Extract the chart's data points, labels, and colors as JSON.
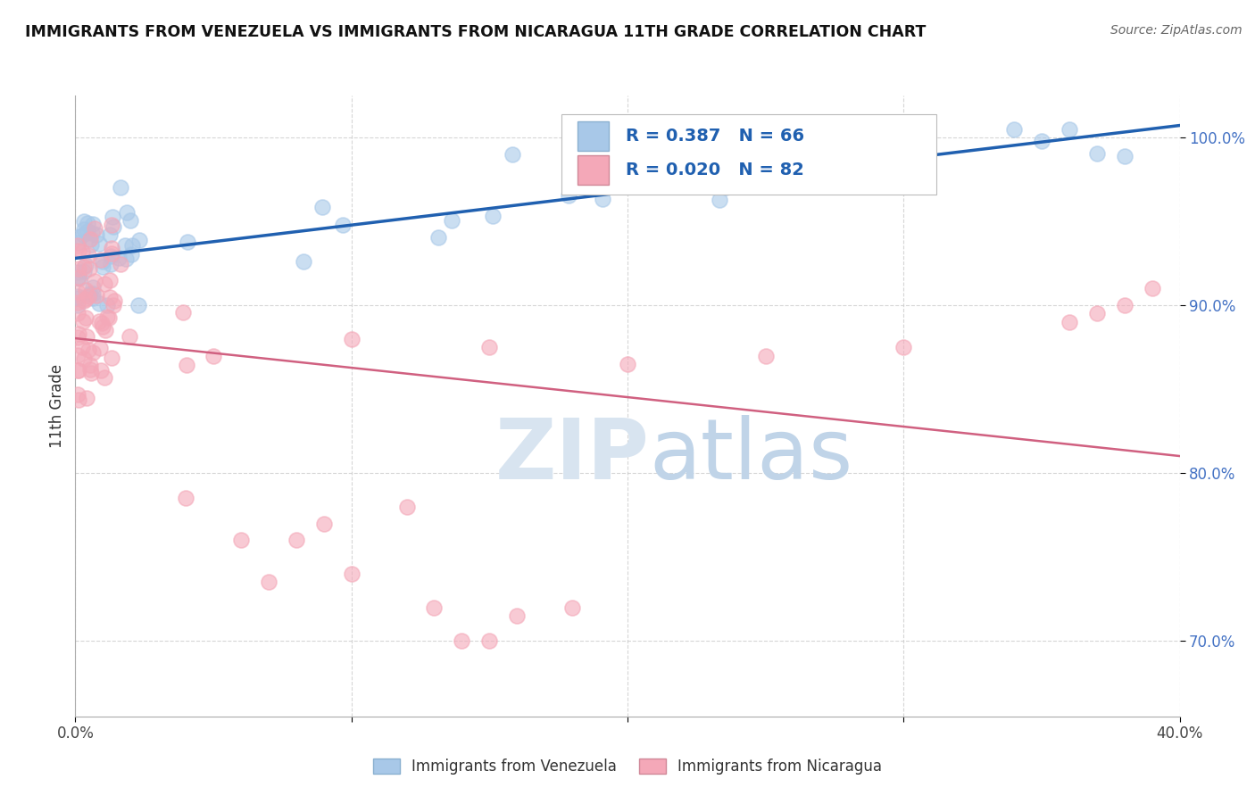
{
  "title": "IMMIGRANTS FROM VENEZUELA VS IMMIGRANTS FROM NICARAGUA 11TH GRADE CORRELATION CHART",
  "source": "Source: ZipAtlas.com",
  "ylabel": "11th Grade",
  "ytick_vals": [
    0.7,
    0.8,
    0.9,
    1.0
  ],
  "legend_label1": "Immigrants from Venezuela",
  "legend_label2": "Immigrants from Nicaragua",
  "R_venezuela": 0.387,
  "N_venezuela": 66,
  "R_nicaragua": 0.02,
  "N_nicaragua": 82,
  "color_venezuela": "#a8c8e8",
  "color_nicaragua": "#f4a8b8",
  "trendline_color_venezuela": "#2060b0",
  "trendline_color_nicaragua": "#d06080",
  "background_color": "#ffffff",
  "xlim": [
    0.0,
    0.4
  ],
  "ylim": [
    0.655,
    1.025
  ]
}
